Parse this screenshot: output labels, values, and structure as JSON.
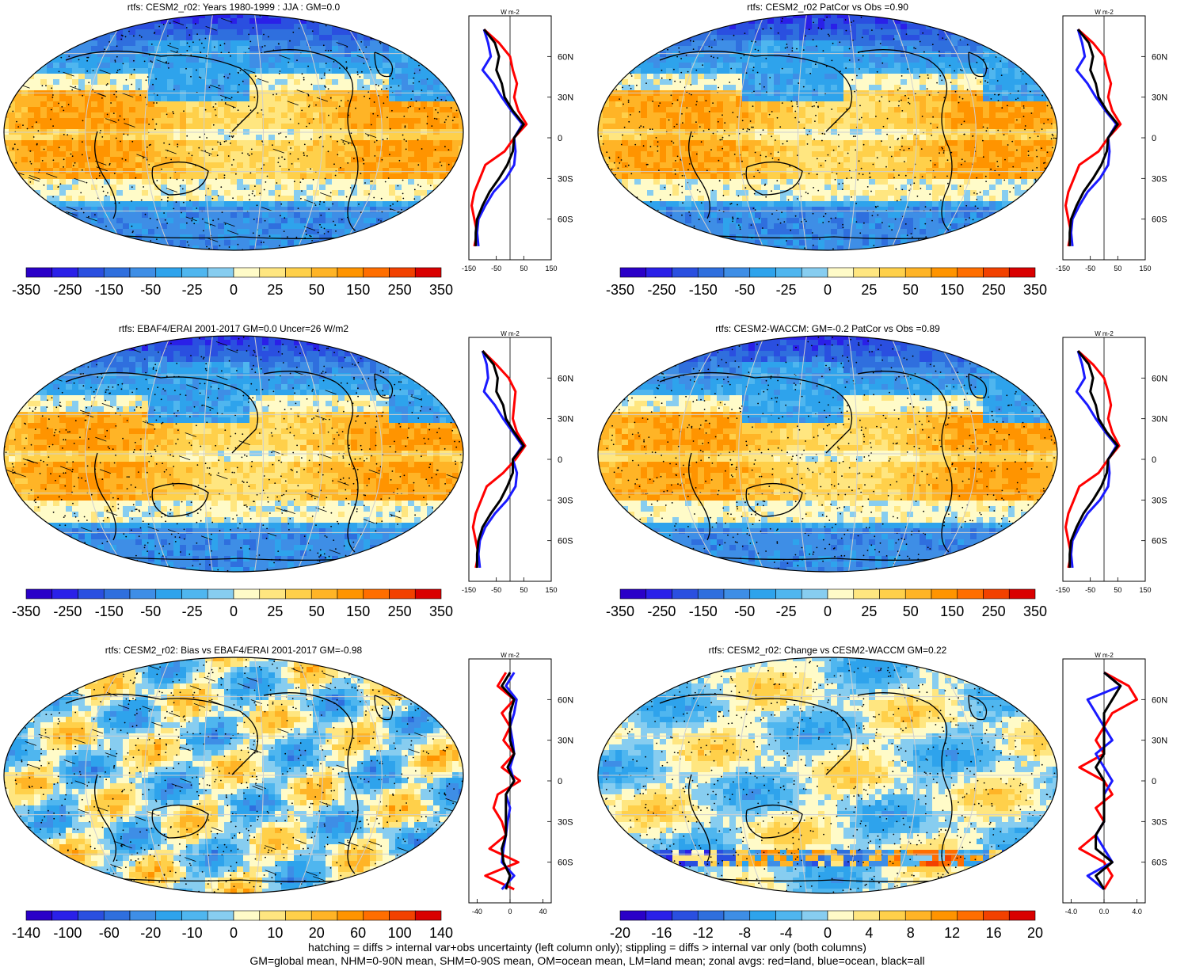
{
  "palette": {
    "warm": [
      "#fffbc8",
      "#ffe680",
      "#ffd04a",
      "#ffb426",
      "#ff9400",
      "#ff6e00",
      "#f24100",
      "#d90000"
    ],
    "cool": [
      "#87cdf0",
      "#4fb6ef",
      "#2ea3ec",
      "#3e8ee6",
      "#2f6fde",
      "#2a4fe0",
      "#2a20e8",
      "#2a00c8"
    ],
    "land": "#ff0000",
    "ocean": "#1a1aff",
    "all": "#000000"
  },
  "chart_data": [
    {
      "type": "heatmap",
      "title": "rtfs: CESM2_r02: Years 1980-1999 : JJA : GM=0.0",
      "colorbar_ticks": [
        "-350",
        "-250",
        "-150",
        "-50",
        "-25",
        "0",
        "25",
        "50",
        "150",
        "250",
        "350"
      ],
      "zonal": {
        "units": "W m-2",
        "xlim": [
          -150,
          150
        ],
        "xticks": [
          "-150",
          "-50",
          "50",
          "150"
        ],
        "yticks": [
          "60N",
          "30N",
          "0",
          "30S",
          "60S"
        ],
        "lat": [
          80,
          70,
          60,
          50,
          40,
          30,
          20,
          10,
          0,
          -10,
          -20,
          -30,
          -40,
          -50,
          -60,
          -70,
          -80
        ],
        "land": [
          -95,
          -40,
          0,
          10,
          25,
          15,
          30,
          60,
          15,
          -20,
          -90,
          -110,
          -130,
          -140,
          -130,
          -120,
          -130
        ],
        "ocean": [
          -95,
          -80,
          -70,
          -100,
          -60,
          -30,
          5,
          45,
          15,
          20,
          15,
          -15,
          -60,
          -90,
          -115,
          -120,
          -115
        ],
        "all": [
          -95,
          -55,
          -40,
          -50,
          -30,
          -20,
          10,
          50,
          15,
          10,
          -10,
          -40,
          -75,
          -100,
          -120,
          -125,
          -125
        ]
      }
    },
    {
      "type": "heatmap",
      "title": "rtfs: CESM2_r02 PatCor vs Obs =0.90",
      "colorbar_ticks": [
        "-350",
        "-250",
        "-150",
        "-50",
        "-25",
        "0",
        "25",
        "50",
        "150",
        "250",
        "350"
      ],
      "zonal": {
        "units": "W m-2",
        "xlim": [
          -150,
          150
        ],
        "xticks": [
          "-150",
          "-50",
          "50",
          "150"
        ],
        "yticks": [
          "60N",
          "30N",
          "0",
          "30S",
          "60S"
        ],
        "lat": [
          80,
          70,
          60,
          50,
          40,
          30,
          20,
          10,
          0,
          -10,
          -20,
          -30,
          -40,
          -50,
          -60,
          -70,
          -80
        ],
        "land": [
          -95,
          -40,
          0,
          10,
          25,
          15,
          30,
          60,
          15,
          -20,
          -90,
          -110,
          -130,
          -140,
          -130,
          -120,
          -130
        ],
        "ocean": [
          -95,
          -80,
          -70,
          -100,
          -60,
          -30,
          5,
          45,
          15,
          20,
          15,
          -15,
          -60,
          -90,
          -115,
          -120,
          -115
        ],
        "all": [
          -95,
          -55,
          -40,
          -50,
          -30,
          -20,
          10,
          50,
          15,
          10,
          -10,
          -40,
          -75,
          -100,
          -120,
          -125,
          -125
        ]
      }
    },
    {
      "type": "heatmap",
      "title": "rtfs: EBAF4/ERAI 2001-2017 GM=0.0 Uncer=26 W/m2",
      "colorbar_ticks": [
        "-350",
        "-250",
        "-150",
        "-50",
        "-25",
        "0",
        "25",
        "50",
        "150",
        "250",
        "350"
      ],
      "zonal": {
        "units": "W m-2",
        "xlim": [
          -150,
          150
        ],
        "xticks": [
          "-150",
          "-50",
          "50",
          "150"
        ],
        "yticks": [
          "60N",
          "30N",
          "0",
          "30S",
          "60S"
        ],
        "lat": [
          80,
          70,
          60,
          50,
          40,
          30,
          20,
          10,
          0,
          -10,
          -20,
          -30,
          -40,
          -50,
          -60,
          -70,
          -80
        ],
        "land": [
          -100,
          -50,
          -5,
          20,
          15,
          10,
          25,
          55,
          20,
          -25,
          -85,
          -105,
          -125,
          -135,
          -125,
          -115,
          -125
        ],
        "ocean": [
          -100,
          -85,
          -80,
          -95,
          -55,
          -25,
          10,
          45,
          10,
          25,
          20,
          -10,
          -55,
          -90,
          -110,
          -115,
          -110
        ],
        "all": [
          -100,
          -60,
          -45,
          -50,
          -25,
          -15,
          15,
          50,
          10,
          10,
          -10,
          -35,
          -70,
          -100,
          -115,
          -120,
          -120
        ]
      }
    },
    {
      "type": "heatmap",
      "title": "rtfs: CESM2-WACCM: GM=-0.2 PatCor vs Obs =0.89",
      "colorbar_ticks": [
        "-350",
        "-250",
        "-150",
        "-50",
        "-25",
        "0",
        "25",
        "50",
        "150",
        "250",
        "350"
      ],
      "zonal": {
        "units": "W m-2",
        "xlim": [
          -150,
          150
        ],
        "xticks": [
          "-150",
          "-50",
          "50",
          "150"
        ],
        "yticks": [
          "60N",
          "30N",
          "0",
          "30S",
          "60S"
        ],
        "lat": [
          80,
          70,
          60,
          50,
          40,
          30,
          20,
          10,
          0,
          -10,
          -20,
          -30,
          -40,
          -50,
          -60,
          -70,
          -80
        ],
        "land": [
          -95,
          -40,
          0,
          15,
          25,
          15,
          30,
          55,
          15,
          -20,
          -90,
          -110,
          -130,
          -140,
          -130,
          -120,
          -130
        ],
        "ocean": [
          -95,
          -80,
          -70,
          -100,
          -60,
          -30,
          5,
          45,
          15,
          20,
          15,
          -15,
          -60,
          -90,
          -115,
          -120,
          -115
        ],
        "all": [
          -95,
          -55,
          -40,
          -50,
          -30,
          -20,
          10,
          50,
          15,
          10,
          -10,
          -40,
          -75,
          -100,
          -120,
          -125,
          -125
        ]
      }
    },
    {
      "type": "heatmap",
      "title": "rtfs: CESM2_r02: Bias vs EBAF4/ERAI 2001-2017 GM=-0.98",
      "colorbar_ticks": [
        "-140",
        "-100",
        "-60",
        "-20",
        "-10",
        "0",
        "10",
        "20",
        "60",
        "100",
        "140"
      ],
      "zonal": {
        "units": "W m-2",
        "xlim": [
          -50,
          50
        ],
        "xticks": [
          "-40",
          "0",
          "40"
        ],
        "yticks": [
          "60N",
          "30N",
          "0",
          "30S",
          "60S"
        ],
        "lat": [
          80,
          70,
          60,
          50,
          40,
          30,
          20,
          10,
          0,
          -10,
          -20,
          -30,
          -40,
          -50,
          -60,
          -70,
          -80
        ],
        "land": [
          -5,
          -15,
          5,
          -10,
          0,
          -8,
          5,
          -10,
          12,
          -15,
          -20,
          -10,
          -5,
          -25,
          10,
          -30,
          5
        ],
        "ocean": [
          5,
          -5,
          8,
          5,
          0,
          3,
          5,
          0,
          5,
          -5,
          0,
          -3,
          -5,
          -8,
          -10,
          5,
          -10
        ],
        "all": [
          0,
          -10,
          5,
          0,
          0,
          0,
          5,
          -3,
          5,
          -5,
          -5,
          -5,
          -5,
          -10,
          -8,
          0,
          -5
        ]
      }
    },
    {
      "type": "heatmap",
      "title": "rtfs: CESM2_r02: Change vs CESM2-WACCM GM=0.22",
      "colorbar_ticks": [
        "-20",
        "-16",
        "-12",
        "-8",
        "-4",
        "0",
        "4",
        "8",
        "12",
        "16",
        "20"
      ],
      "zonal": {
        "units": "W m-2",
        "xlim": [
          -5,
          5
        ],
        "xticks": [
          "-4.0",
          "0.0",
          "4.0"
        ],
        "yticks": [
          "60N",
          "30N",
          "0",
          "30S",
          "60S"
        ],
        "lat": [
          80,
          70,
          60,
          50,
          40,
          30,
          20,
          10,
          0,
          -10,
          -20,
          -30,
          -40,
          -50,
          -60,
          -70,
          -80
        ],
        "land": [
          0,
          3,
          4,
          1,
          0,
          -1,
          0,
          -3,
          0,
          1,
          -1,
          0,
          -1,
          -3,
          0,
          1,
          0
        ],
        "ocean": [
          0,
          2,
          -2,
          -1,
          0,
          1,
          -1,
          0,
          1,
          0,
          0,
          0,
          -1,
          0,
          1,
          -2,
          0
        ],
        "all": [
          0,
          2,
          1,
          0,
          0,
          0,
          0,
          -1,
          0,
          0,
          0,
          0,
          -1,
          -1,
          1,
          -1,
          0
        ]
      }
    }
  ],
  "footnote": {
    "line1": "hatching = diffs > internal var+obs uncertainty (left column only); stippling = diffs > internal var only (both columns)",
    "line2": "GM=global mean, NHM=0-90N mean, SHM=0-90S mean, OM=ocean mean, LM=land mean; zonal avgs: red=land, blue=ocean, black=all"
  }
}
